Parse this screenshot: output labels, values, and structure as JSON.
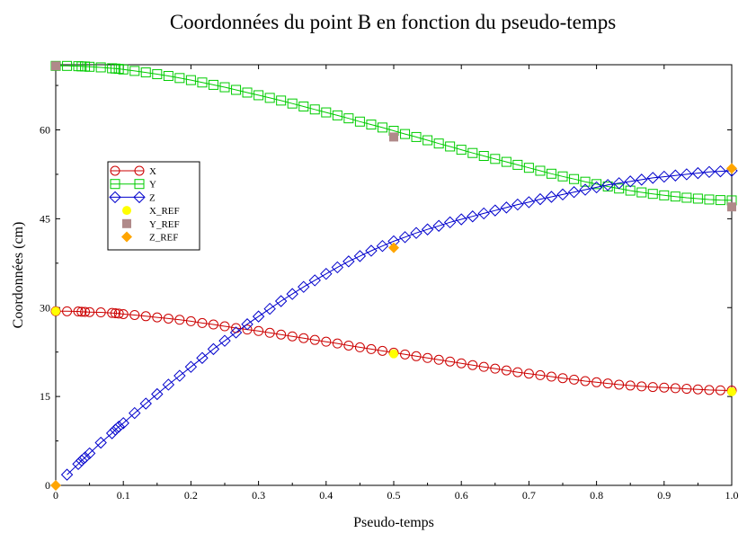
{
  "chart_data": {
    "type": "line",
    "title": "Coordonnées du point B en fonction du pseudo-temps",
    "xlabel": "Pseudo-temps",
    "ylabel": "Coordonnées (cm)",
    "xlim": [
      0,
      1
    ],
    "ylim": [
      0,
      71
    ],
    "x_ticks": [
      0,
      0.1,
      0.2,
      0.3,
      0.4,
      0.5,
      0.6,
      0.7,
      0.8,
      0.9,
      1.0
    ],
    "x_tick_labels": [
      "0",
      "0.1",
      "0.2",
      "0.3",
      "0.4",
      "0.5",
      "0.6",
      "0.7",
      "0.8",
      "0.9",
      "1.0"
    ],
    "y_ticks": [
      0,
      15,
      30,
      45,
      60
    ],
    "y_tick_labels": [
      "0",
      "15",
      "30",
      "45",
      "60"
    ],
    "grid": false,
    "legend_position": "left",
    "series": [
      {
        "name": "X",
        "color": "#cc0000",
        "marker": "circle",
        "x": [
          0.0,
          0.0167,
          0.0333,
          0.0383,
          0.0433,
          0.05,
          0.0667,
          0.0833,
          0.0883,
          0.0933,
          0.1,
          0.1167,
          0.1333,
          0.15,
          0.1667,
          0.1833,
          0.2,
          0.2167,
          0.2333,
          0.25,
          0.2667,
          0.2833,
          0.3,
          0.3167,
          0.3333,
          0.35,
          0.3667,
          0.3833,
          0.4,
          0.4167,
          0.4333,
          0.45,
          0.4667,
          0.4833,
          0.5,
          0.5167,
          0.5333,
          0.55,
          0.5667,
          0.5833,
          0.6,
          0.6167,
          0.6333,
          0.65,
          0.6667,
          0.6833,
          0.7,
          0.7167,
          0.7333,
          0.75,
          0.7667,
          0.7833,
          0.8,
          0.8167,
          0.8333,
          0.85,
          0.8667,
          0.8833,
          0.9,
          0.9167,
          0.9333,
          0.95,
          0.9667,
          0.9833,
          1.0
        ],
        "values": [
          29.4,
          29.38,
          29.35,
          29.3,
          29.28,
          29.25,
          29.2,
          29.1,
          29.05,
          29.0,
          28.9,
          28.75,
          28.55,
          28.35,
          28.15,
          27.95,
          27.7,
          27.4,
          27.15,
          26.85,
          26.55,
          26.3,
          26.05,
          25.75,
          25.45,
          25.15,
          24.85,
          24.55,
          24.25,
          23.95,
          23.6,
          23.3,
          23.0,
          22.7,
          22.4,
          22.1,
          21.8,
          21.5,
          21.2,
          20.9,
          20.6,
          20.3,
          20.0,
          19.7,
          19.4,
          19.1,
          18.85,
          18.6,
          18.35,
          18.1,
          17.85,
          17.6,
          17.4,
          17.2,
          17.0,
          16.85,
          16.7,
          16.6,
          16.5,
          16.4,
          16.3,
          16.2,
          16.1,
          16.05,
          16.0
        ]
      },
      {
        "name": "Y",
        "color": "#00cc00",
        "marker": "square",
        "x": [
          0.0,
          0.0167,
          0.0333,
          0.0383,
          0.0433,
          0.05,
          0.0667,
          0.0833,
          0.0883,
          0.0933,
          0.1,
          0.1167,
          0.1333,
          0.15,
          0.1667,
          0.1833,
          0.2,
          0.2167,
          0.2333,
          0.25,
          0.2667,
          0.2833,
          0.3,
          0.3167,
          0.3333,
          0.35,
          0.3667,
          0.3833,
          0.4,
          0.4167,
          0.4333,
          0.45,
          0.4667,
          0.4833,
          0.5,
          0.5167,
          0.5333,
          0.55,
          0.5667,
          0.5833,
          0.6,
          0.6167,
          0.6333,
          0.65,
          0.6667,
          0.6833,
          0.7,
          0.7167,
          0.7333,
          0.75,
          0.7667,
          0.7833,
          0.8,
          0.8167,
          0.8333,
          0.85,
          0.8667,
          0.8833,
          0.9,
          0.9167,
          0.9333,
          0.95,
          0.9667,
          0.9833,
          1.0
        ],
        "values": [
          70.8,
          70.8,
          70.75,
          70.72,
          70.7,
          70.65,
          70.55,
          70.4,
          70.35,
          70.3,
          70.2,
          69.95,
          69.7,
          69.4,
          69.1,
          68.75,
          68.4,
          68.0,
          67.6,
          67.2,
          66.75,
          66.3,
          65.85,
          65.4,
          64.95,
          64.45,
          63.95,
          63.45,
          62.95,
          62.45,
          61.95,
          61.4,
          60.9,
          60.4,
          59.85,
          59.3,
          58.8,
          58.25,
          57.7,
          57.2,
          56.65,
          56.1,
          55.6,
          55.1,
          54.6,
          54.1,
          53.6,
          53.1,
          52.6,
          52.15,
          51.7,
          51.25,
          50.85,
          50.45,
          50.1,
          49.75,
          49.45,
          49.2,
          48.95,
          48.75,
          48.55,
          48.4,
          48.25,
          48.15,
          48.1
        ]
      },
      {
        "name": "Z",
        "color": "#0000cc",
        "marker": "diamond",
        "x": [
          0.0167,
          0.0333,
          0.0383,
          0.0433,
          0.05,
          0.0667,
          0.0833,
          0.0883,
          0.0933,
          0.1,
          0.1167,
          0.1333,
          0.15,
          0.1667,
          0.1833,
          0.2,
          0.2167,
          0.2333,
          0.25,
          0.2667,
          0.2833,
          0.3,
          0.3167,
          0.3333,
          0.35,
          0.3667,
          0.3833,
          0.4,
          0.4167,
          0.4333,
          0.45,
          0.4667,
          0.4833,
          0.5,
          0.5167,
          0.5333,
          0.55,
          0.5667,
          0.5833,
          0.6,
          0.6167,
          0.6333,
          0.65,
          0.6667,
          0.6833,
          0.7,
          0.7167,
          0.7333,
          0.75,
          0.7667,
          0.7833,
          0.8,
          0.8167,
          0.8333,
          0.85,
          0.8667,
          0.8833,
          0.9,
          0.9167,
          0.9333,
          0.95,
          0.9667,
          0.9833,
          1.0
        ],
        "values": [
          1.8,
          3.6,
          4.2,
          4.7,
          5.4,
          7.2,
          8.8,
          9.4,
          9.9,
          10.5,
          12.2,
          13.8,
          15.4,
          17.0,
          18.5,
          20.0,
          21.5,
          23.0,
          24.4,
          25.8,
          27.2,
          28.5,
          29.8,
          31.1,
          32.3,
          33.5,
          34.6,
          35.7,
          36.8,
          37.8,
          38.7,
          39.6,
          40.4,
          41.2,
          41.9,
          42.6,
          43.2,
          43.8,
          44.4,
          44.9,
          45.4,
          45.9,
          46.4,
          46.9,
          47.4,
          47.8,
          48.3,
          48.7,
          49.1,
          49.5,
          49.9,
          50.3,
          50.7,
          51.0,
          51.3,
          51.6,
          51.9,
          52.1,
          52.3,
          52.5,
          52.7,
          52.9,
          53.0,
          53.1
        ]
      }
    ],
    "reference_points": [
      {
        "name": "X_REF",
        "color": "#ffff00",
        "marker": "filled-circle",
        "x": [
          0.0,
          0.5,
          1.0
        ],
        "values": [
          29.4,
          22.2,
          15.8
        ]
      },
      {
        "name": "Y_REF",
        "color": "#b08a8a",
        "marker": "filled-square",
        "x": [
          0.0,
          0.5,
          1.0
        ],
        "values": [
          70.8,
          58.8,
          47.0
        ]
      },
      {
        "name": "Z_REF",
        "color": "#ffa500",
        "marker": "filled-diamond",
        "x": [
          0.0,
          0.5,
          1.0
        ],
        "values": [
          0.0,
          40.1,
          53.5
        ]
      }
    ]
  }
}
